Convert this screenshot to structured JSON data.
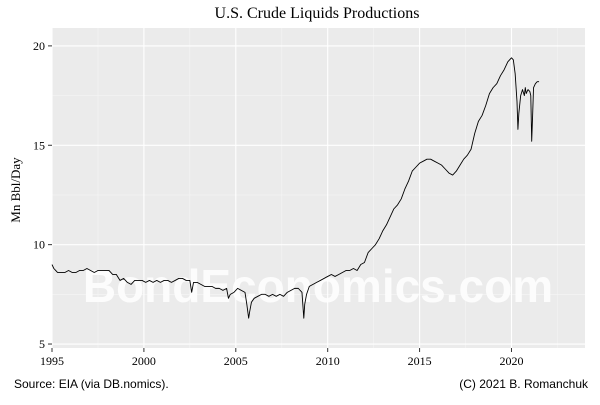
{
  "chart_data": {
    "type": "line",
    "title": "U.S. Crude Liquids Productions",
    "xlabel": "",
    "ylabel": "Mn Bbl/Day",
    "xlim": [
      1995,
      2024
    ],
    "ylim": [
      4.8,
      20.9
    ],
    "x_ticks": [
      1995,
      2000,
      2005,
      2010,
      2015,
      2020
    ],
    "y_ticks": [
      5,
      10,
      15,
      20
    ],
    "grid": true,
    "legend": "none",
    "watermark": "BondEconomics.com",
    "source_note": "Source: EIA (via DB.nomics).",
    "credit_note": "(C) 2021 B. Romanchuk",
    "colors": {
      "panel_background": "#ebebeb",
      "grid_major": "#ffffff",
      "grid_minor": "#f5f5f5",
      "line": "#000000"
    },
    "series": [
      {
        "x": [
          1995.0,
          1995.1,
          1995.2,
          1995.3,
          1995.5,
          1995.7,
          1995.9,
          1996.1,
          1996.3,
          1996.5,
          1996.7,
          1996.9,
          1997.1,
          1997.3,
          1997.5,
          1997.7,
          1997.9,
          1998.1,
          1998.3,
          1998.5,
          1998.7,
          1998.9,
          1999.1,
          1999.3,
          1999.5,
          1999.7,
          1999.9,
          2000.1,
          2000.3,
          2000.5,
          2000.7,
          2000.9,
          2001.1,
          2001.3,
          2001.5,
          2001.7,
          2001.9,
          2002.1,
          2002.3,
          2002.5,
          2002.6,
          2002.7,
          2002.9,
          2003.1,
          2003.3,
          2003.5,
          2003.7,
          2003.9,
          2004.1,
          2004.3,
          2004.5,
          2004.6,
          2004.7,
          2004.9,
          2005.1,
          2005.3,
          2005.5,
          2005.6,
          2005.7,
          2005.75,
          2005.85,
          2006.0,
          2006.2,
          2006.4,
          2006.6,
          2006.8,
          2007.0,
          2007.2,
          2007.4,
          2007.6,
          2007.8,
          2008.0,
          2008.2,
          2008.4,
          2008.6,
          2008.7,
          2008.75,
          2008.85,
          2009.0,
          2009.2,
          2009.4,
          2009.6,
          2009.8,
          2010.0,
          2010.2,
          2010.4,
          2010.6,
          2010.8,
          2011.0,
          2011.2,
          2011.4,
          2011.6,
          2011.8,
          2012.0,
          2012.2,
          2012.4,
          2012.6,
          2012.8,
          2013.0,
          2013.2,
          2013.4,
          2013.6,
          2013.8,
          2014.0,
          2014.2,
          2014.4,
          2014.6,
          2014.8,
          2015.0,
          2015.2,
          2015.4,
          2015.6,
          2015.8,
          2016.0,
          2016.2,
          2016.4,
          2016.6,
          2016.8,
          2017.0,
          2017.2,
          2017.4,
          2017.6,
          2017.8,
          2018.0,
          2018.2,
          2018.4,
          2018.6,
          2018.8,
          2019.0,
          2019.2,
          2019.4,
          2019.6,
          2019.8,
          2020.0,
          2020.1,
          2020.2,
          2020.3,
          2020.35,
          2020.4,
          2020.5,
          2020.6,
          2020.7,
          2020.75,
          2020.8,
          2020.9,
          2021.0,
          2021.05,
          2021.1,
          2021.15,
          2021.2,
          2021.3,
          2021.4,
          2021.5
        ],
        "values": [
          9.0,
          8.8,
          8.7,
          8.6,
          8.6,
          8.6,
          8.7,
          8.6,
          8.6,
          8.7,
          8.7,
          8.8,
          8.7,
          8.6,
          8.7,
          8.7,
          8.7,
          8.7,
          8.5,
          8.5,
          8.2,
          8.3,
          8.1,
          8.0,
          8.2,
          8.2,
          8.2,
          8.1,
          8.2,
          8.1,
          8.2,
          8.1,
          8.2,
          8.2,
          8.1,
          8.2,
          8.3,
          8.3,
          8.2,
          8.2,
          7.6,
          8.1,
          8.1,
          8.0,
          7.9,
          7.9,
          7.9,
          7.8,
          7.8,
          7.7,
          7.8,
          7.3,
          7.5,
          7.6,
          7.8,
          7.7,
          7.6,
          7.0,
          6.3,
          6.6,
          7.1,
          7.3,
          7.4,
          7.5,
          7.5,
          7.4,
          7.5,
          7.4,
          7.5,
          7.4,
          7.6,
          7.7,
          7.8,
          7.8,
          7.6,
          6.3,
          7.0,
          7.5,
          7.9,
          8.0,
          8.1,
          8.2,
          8.3,
          8.4,
          8.5,
          8.4,
          8.5,
          8.6,
          8.7,
          8.7,
          8.8,
          8.7,
          9.0,
          9.1,
          9.6,
          9.8,
          10.0,
          10.3,
          10.7,
          11.0,
          11.4,
          11.8,
          12.0,
          12.3,
          12.8,
          13.2,
          13.7,
          13.9,
          14.1,
          14.2,
          14.3,
          14.3,
          14.2,
          14.1,
          14.0,
          13.8,
          13.6,
          13.5,
          13.7,
          14.0,
          14.3,
          14.5,
          14.8,
          15.6,
          16.2,
          16.5,
          17.0,
          17.6,
          17.9,
          18.1,
          18.5,
          18.8,
          19.2,
          19.4,
          19.3,
          18.6,
          17.2,
          15.8,
          16.6,
          17.5,
          17.8,
          17.5,
          17.9,
          17.6,
          17.8,
          17.7,
          17.5,
          15.2,
          16.5,
          17.9,
          18.1,
          18.2,
          18.2
        ]
      }
    ]
  }
}
